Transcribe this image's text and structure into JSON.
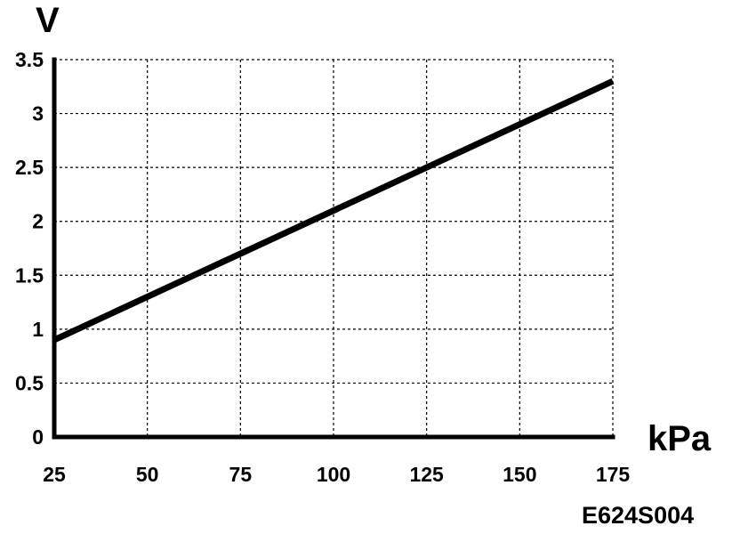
{
  "chart_data": {
    "type": "line",
    "xlabel": "kPa",
    "ylabel": "V",
    "xlim": [
      25,
      175
    ],
    "ylim": [
      0,
      3.5
    ],
    "x_ticks": [
      "25",
      "50",
      "75",
      "100",
      "125",
      "150",
      "175"
    ],
    "y_ticks": [
      "0",
      "0.5",
      "1",
      "1.5",
      "2",
      "2.5",
      "3",
      "3.5"
    ],
    "grid": true,
    "series": [
      {
        "x": [
          25,
          175
        ],
        "y": [
          0.9,
          3.3
        ]
      }
    ],
    "figure_code": "E624S004"
  }
}
